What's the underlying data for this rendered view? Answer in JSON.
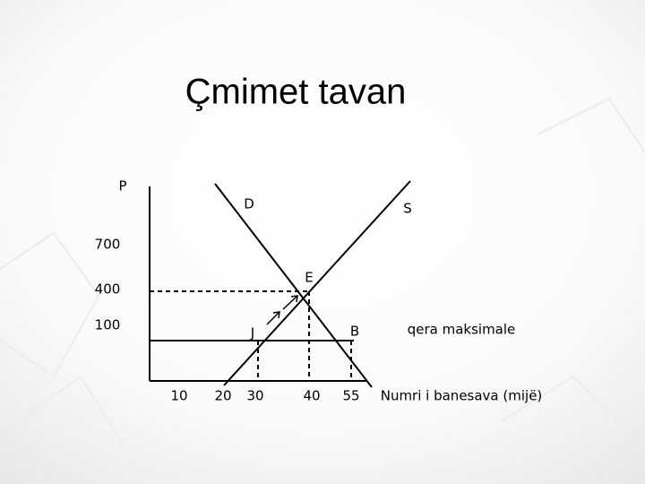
{
  "title": "Çmimet tavan",
  "diagram": {
    "y_axis_label": "P",
    "x_axis_label": "Numri i banesava (mijë)",
    "demand_label": "D",
    "supply_label": "S",
    "price_labels": [
      "700",
      "400",
      "100"
    ],
    "quantity_labels": [
      "10",
      "20",
      "30",
      "40",
      "55"
    ],
    "equilibrium_label": "E",
    "point_j_label": "J",
    "point_b_label": "B",
    "ceiling_label": "qera maksimale"
  }
}
